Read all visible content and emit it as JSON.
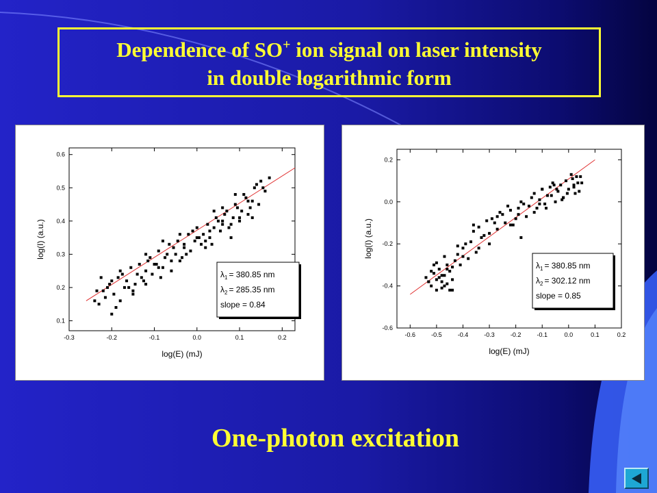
{
  "slide": {
    "title_line1_pre": "Dependence of  SO",
    "title_sup": "+",
    "title_line1_post": " ion signal on laser intensity",
    "title_line2": "in double logarithmic form",
    "subtitle": "One-photon excitation",
    "colors": {
      "background": "#1a1aa8",
      "title_text": "#ffff33",
      "fit_line": "#e03030",
      "nav_button": "#1ea7d4"
    },
    "nav": {
      "icon": "back-arrow-icon"
    }
  },
  "chart_data": [
    {
      "type": "scatter",
      "xlabel": "log(E) (mJ)",
      "ylabel": "log(I) (a.u.)",
      "xlim": [
        -0.3,
        0.23
      ],
      "ylim": [
        0.07,
        0.62
      ],
      "xticks": [
        -0.3,
        -0.2,
        -0.1,
        0.0,
        0.1,
        0.2
      ],
      "xtick_labels": [
        "-0.3",
        "-0.2",
        "-0.1",
        "0.0",
        "0.1",
        "0.2"
      ],
      "yticks": [
        0.1,
        0.2,
        0.3,
        0.4,
        0.5,
        0.6
      ],
      "ytick_labels": [
        "0.1",
        "0.2",
        "0.3",
        "0.4",
        "0.5",
        "0.6"
      ],
      "fit": {
        "slope": 0.84,
        "x": [
          -0.26,
          0.23
        ],
        "y": [
          0.16,
          0.56
        ]
      },
      "annotation": {
        "lambda1": "= 380.85 nm",
        "lambda2": "= 285.35 nm",
        "slope": "slope = 0.84"
      },
      "grid": false,
      "series": [
        {
          "x": [
            -0.24,
            -0.235,
            -0.225,
            -0.215,
            -0.21,
            -0.2,
            -0.195,
            -0.185,
            -0.18,
            -0.17,
            -0.165,
            -0.155,
            -0.15,
            -0.14,
            -0.135,
            -0.125,
            -0.12,
            -0.11,
            -0.105,
            -0.095,
            -0.09,
            -0.08,
            -0.075,
            -0.065,
            -0.06,
            -0.05,
            -0.045,
            -0.035,
            -0.03,
            -0.02,
            -0.015,
            -0.005,
            0.0,
            0.01,
            0.015,
            0.025,
            0.03,
            0.04,
            0.045,
            0.055,
            0.06,
            0.07,
            0.075,
            0.085,
            0.09,
            0.1,
            0.105,
            0.115,
            0.12,
            0.13,
            0.135,
            0.145,
            0.15,
            0.16,
            0.17,
            -0.23,
            -0.205,
            -0.175,
            -0.145,
            -0.115,
            -0.085,
            -0.055,
            -0.025,
            0.005,
            0.035,
            0.065,
            0.095,
            0.125,
            0.155,
            -0.22,
            -0.19,
            -0.16,
            -0.13,
            -0.1,
            -0.07,
            -0.04,
            -0.01,
            0.02,
            0.05,
            0.08,
            0.11,
            0.14,
            -0.18,
            -0.15,
            -0.12,
            -0.09,
            -0.06,
            -0.03,
            0.0,
            0.03,
            0.06,
            0.09,
            0.12,
            -0.2,
            -0.12,
            -0.04,
            0.04,
            0.1,
            0.06,
            0.02,
            -0.08,
            0.13,
            0.08
          ],
          "y": [
            0.16,
            0.19,
            0.23,
            0.17,
            0.2,
            0.22,
            0.18,
            0.23,
            0.25,
            0.2,
            0.22,
            0.26,
            0.19,
            0.24,
            0.27,
            0.22,
            0.25,
            0.29,
            0.24,
            0.27,
            0.31,
            0.26,
            0.29,
            0.33,
            0.28,
            0.3,
            0.34,
            0.29,
            0.32,
            0.36,
            0.31,
            0.34,
            0.38,
            0.33,
            0.36,
            0.39,
            0.35,
            0.38,
            0.41,
            0.37,
            0.4,
            0.43,
            0.38,
            0.41,
            0.45,
            0.4,
            0.43,
            0.47,
            0.42,
            0.46,
            0.5,
            0.45,
            0.52,
            0.49,
            0.53,
            0.15,
            0.21,
            0.24,
            0.21,
            0.28,
            0.23,
            0.32,
            0.3,
            0.35,
            0.33,
            0.42,
            0.44,
            0.44,
            0.5,
            0.19,
            0.14,
            0.2,
            0.23,
            0.27,
            0.3,
            0.28,
            0.37,
            0.34,
            0.4,
            0.39,
            0.48,
            0.51,
            0.16,
            0.18,
            0.21,
            0.26,
            0.25,
            0.33,
            0.35,
            0.37,
            0.44,
            0.48,
            0.46,
            0.12,
            0.3,
            0.36,
            0.43,
            0.41,
            0.39,
            0.32,
            0.34,
            0.41,
            0.35
          ]
        }
      ]
    },
    {
      "type": "scatter",
      "xlabel": "log(E) (mJ)",
      "ylabel": "log(I) (a.u.)",
      "xlim": [
        -0.65,
        0.2
      ],
      "ylim": [
        -0.6,
        0.25
      ],
      "xticks": [
        -0.6,
        -0.5,
        -0.4,
        -0.3,
        -0.2,
        -0.1,
        0.0,
        0.1,
        0.2
      ],
      "xtick_labels": [
        "-0.6",
        "-0.5",
        "-0.4",
        "-0.3",
        "-0.2",
        "-0.1",
        "0.0",
        "0.1",
        "0.2"
      ],
      "yticks": [
        -0.6,
        -0.4,
        -0.2,
        0.0,
        0.2
      ],
      "ytick_labels": [
        "-0.6",
        "-0.4",
        "-0.2",
        "0.0",
        "0.2"
      ],
      "fit": {
        "slope": 0.85,
        "x": [
          -0.6,
          0.1
        ],
        "y": [
          -0.44,
          0.2
        ]
      },
      "annotation": {
        "lambda1": "= 380.85 nm",
        "lambda2": "= 302.12 nm",
        "slope": "slope = 0.85"
      },
      "grid": false,
      "series": [
        {
          "x": [
            -0.54,
            -0.53,
            -0.52,
            -0.51,
            -0.5,
            -0.5,
            -0.49,
            -0.48,
            -0.48,
            -0.47,
            -0.46,
            -0.46,
            -0.45,
            -0.44,
            -0.44,
            -0.43,
            -0.52,
            -0.5,
            -0.48,
            -0.47,
            -0.45,
            -0.53,
            -0.49,
            -0.46,
            -0.42,
            -0.41,
            -0.4,
            -0.38,
            -0.37,
            -0.35,
            -0.34,
            -0.32,
            -0.3,
            -0.29,
            -0.27,
            -0.26,
            -0.24,
            -0.22,
            -0.21,
            -0.19,
            -0.18,
            -0.16,
            -0.15,
            -0.13,
            -0.12,
            -0.1,
            -0.09,
            -0.08,
            -0.07,
            -0.05,
            -0.04,
            -0.03,
            -0.02,
            -0.01,
            0.0,
            0.01,
            0.02,
            0.03,
            0.04,
            0.05,
            -0.39,
            -0.36,
            -0.33,
            -0.31,
            -0.28,
            -0.25,
            -0.23,
            -0.2,
            -0.17,
            -0.14,
            -0.11,
            -0.085,
            -0.065,
            -0.045,
            -0.025,
            -0.005,
            0.015,
            0.035,
            -0.42,
            -0.4,
            -0.34,
            -0.3,
            -0.22,
            -0.18,
            -0.13,
            -0.1,
            -0.06,
            -0.02,
            0.02,
            0.045,
            -0.47,
            -0.44,
            -0.51,
            -0.36,
            -0.27,
            -0.19,
            -0.11,
            -0.055,
            0.025
          ],
          "y": [
            -0.36,
            -0.38,
            -0.4,
            -0.34,
            -0.37,
            -0.42,
            -0.32,
            -0.38,
            -0.41,
            -0.35,
            -0.3,
            -0.39,
            -0.33,
            -0.37,
            -0.42,
            -0.28,
            -0.33,
            -0.29,
            -0.35,
            -0.4,
            -0.42,
            -0.38,
            -0.36,
            -0.32,
            -0.25,
            -0.3,
            -0.22,
            -0.27,
            -0.19,
            -0.24,
            -0.12,
            -0.16,
            -0.2,
            -0.08,
            -0.13,
            -0.05,
            -0.1,
            -0.04,
            -0.11,
            -0.06,
            0.0,
            -0.07,
            -0.02,
            0.04,
            -0.03,
            0.06,
            -0.01,
            0.03,
            0.07,
            0.0,
            0.05,
            0.08,
            0.02,
            0.1,
            0.06,
            0.13,
            0.08,
            0.12,
            0.05,
            0.09,
            -0.2,
            -0.14,
            -0.17,
            -0.09,
            -0.1,
            -0.06,
            -0.02,
            -0.08,
            -0.01,
            0.02,
            0.01,
            -0.03,
            0.03,
            0.06,
            0.01,
            0.04,
            0.11,
            0.09,
            -0.21,
            -0.26,
            -0.22,
            -0.15,
            -0.11,
            -0.17,
            -0.05,
            0.06,
            0.09,
            0.02,
            0.07,
            0.12,
            -0.26,
            -0.31,
            -0.3,
            -0.11,
            -0.07,
            -0.03,
            -0.01,
            0.08,
            0.04
          ]
        }
      ]
    }
  ]
}
